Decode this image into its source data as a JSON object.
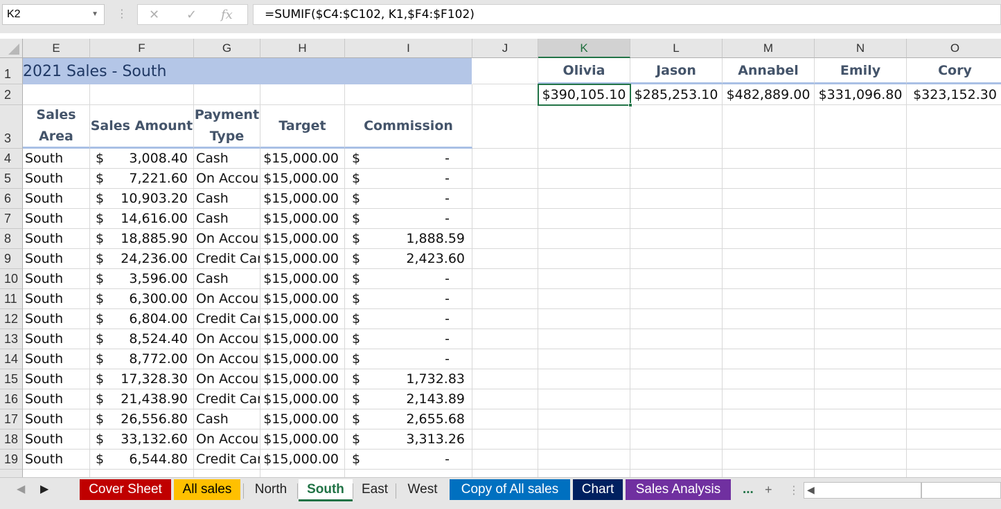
{
  "formula_bar": {
    "name_box": "K2",
    "cancel_icon": "✕",
    "enter_icon": "✓",
    "fx_label": "fx",
    "formula": "=SUMIF($C4:$C102, K1,$F4:$F102)"
  },
  "columns": [
    "E",
    "F",
    "G",
    "H",
    "I",
    "J",
    "K",
    "L",
    "M",
    "N",
    "O"
  ],
  "selected_column": "K",
  "title": "2021 Sales - South",
  "headers": {
    "sales_area": "Sales Area",
    "sales_amount": "Sales Amount",
    "payment_type": "Payment Type",
    "target": "Target",
    "commission": "Commission"
  },
  "rows": [
    {
      "num": "4",
      "area": "South",
      "dollar": "$",
      "amount": "3,008.40",
      "payment": "Cash",
      "target": "$15,000.00",
      "cdollar": "$",
      "commission": "-"
    },
    {
      "num": "5",
      "area": "South",
      "dollar": "$",
      "amount": "7,221.60",
      "payment": "On Account",
      "target": "$15,000.00",
      "cdollar": "$",
      "commission": "-"
    },
    {
      "num": "6",
      "area": "South",
      "dollar": "$",
      "amount": "10,903.20",
      "payment": "Cash",
      "target": "$15,000.00",
      "cdollar": "$",
      "commission": "-"
    },
    {
      "num": "7",
      "area": "South",
      "dollar": "$",
      "amount": "14,616.00",
      "payment": "Cash",
      "target": "$15,000.00",
      "cdollar": "$",
      "commission": "-"
    },
    {
      "num": "8",
      "area": "South",
      "dollar": "$",
      "amount": "18,885.90",
      "payment": "On Account",
      "target": "$15,000.00",
      "cdollar": "$",
      "commission": "1,888.59"
    },
    {
      "num": "9",
      "area": "South",
      "dollar": "$",
      "amount": "24,236.00",
      "payment": "Credit Card",
      "target": "$15,000.00",
      "cdollar": "$",
      "commission": "2,423.60"
    },
    {
      "num": "10",
      "area": "South",
      "dollar": "$",
      "amount": "3,596.00",
      "payment": "Cash",
      "target": "$15,000.00",
      "cdollar": "$",
      "commission": "-"
    },
    {
      "num": "11",
      "area": "South",
      "dollar": "$",
      "amount": "6,300.00",
      "payment": "On Account",
      "target": "$15,000.00",
      "cdollar": "$",
      "commission": "-"
    },
    {
      "num": "12",
      "area": "South",
      "dollar": "$",
      "amount": "6,804.00",
      "payment": "Credit Card",
      "target": "$15,000.00",
      "cdollar": "$",
      "commission": "-"
    },
    {
      "num": "13",
      "area": "South",
      "dollar": "$",
      "amount": "8,524.40",
      "payment": "On Account",
      "target": "$15,000.00",
      "cdollar": "$",
      "commission": "-"
    },
    {
      "num": "14",
      "area": "South",
      "dollar": "$",
      "amount": "8,772.00",
      "payment": "On Account",
      "target": "$15,000.00",
      "cdollar": "$",
      "commission": "-"
    },
    {
      "num": "15",
      "area": "South",
      "dollar": "$",
      "amount": "17,328.30",
      "payment": "On Account",
      "target": "$15,000.00",
      "cdollar": "$",
      "commission": "1,732.83"
    },
    {
      "num": "16",
      "area": "South",
      "dollar": "$",
      "amount": "21,438.90",
      "payment": "Credit Card",
      "target": "$15,000.00",
      "cdollar": "$",
      "commission": "2,143.89"
    },
    {
      "num": "17",
      "area": "South",
      "dollar": "$",
      "amount": "26,556.80",
      "payment": "Cash",
      "target": "$15,000.00",
      "cdollar": "$",
      "commission": "2,655.68"
    },
    {
      "num": "18",
      "area": "South",
      "dollar": "$",
      "amount": "33,132.60",
      "payment": "On Account",
      "target": "$15,000.00",
      "cdollar": "$",
      "commission": "3,313.26"
    },
    {
      "num": "19",
      "area": "South",
      "dollar": "$",
      "amount": "6,544.80",
      "payment": "Credit Card",
      "target": "$15,000.00",
      "cdollar": "$",
      "commission": "-"
    }
  ],
  "summary": {
    "names": [
      "Olivia",
      "Jason",
      "Annabel",
      "Emily",
      "Cory"
    ],
    "totals": [
      "$390,105.10",
      "$285,253.10",
      "$482,889.00",
      "$331,096.80",
      "$323,152.30"
    ]
  },
  "tabs": [
    {
      "label": "Cover Sheet",
      "color": "#c00000",
      "text": "#ffffff"
    },
    {
      "label": "All sales",
      "color": "#ffc000",
      "text": "#000000"
    },
    {
      "label": "North",
      "color": "",
      "text": "#222222"
    },
    {
      "label": "South",
      "color": "",
      "text": "#217346",
      "active": true
    },
    {
      "label": "East",
      "color": "",
      "text": "#222222"
    },
    {
      "label": "West",
      "color": "",
      "text": "#222222"
    },
    {
      "label": "Copy of All sales",
      "color": "#0070c0",
      "text": "#ffffff"
    },
    {
      "label": "Chart",
      "color": "#002060",
      "text": "#ffffff"
    },
    {
      "label": "Sales Analysis",
      "color": "#7030a0",
      "text": "#ffffff"
    }
  ],
  "tab_more": "...",
  "add_sheet_icon": "+",
  "accent_color": "#217346"
}
